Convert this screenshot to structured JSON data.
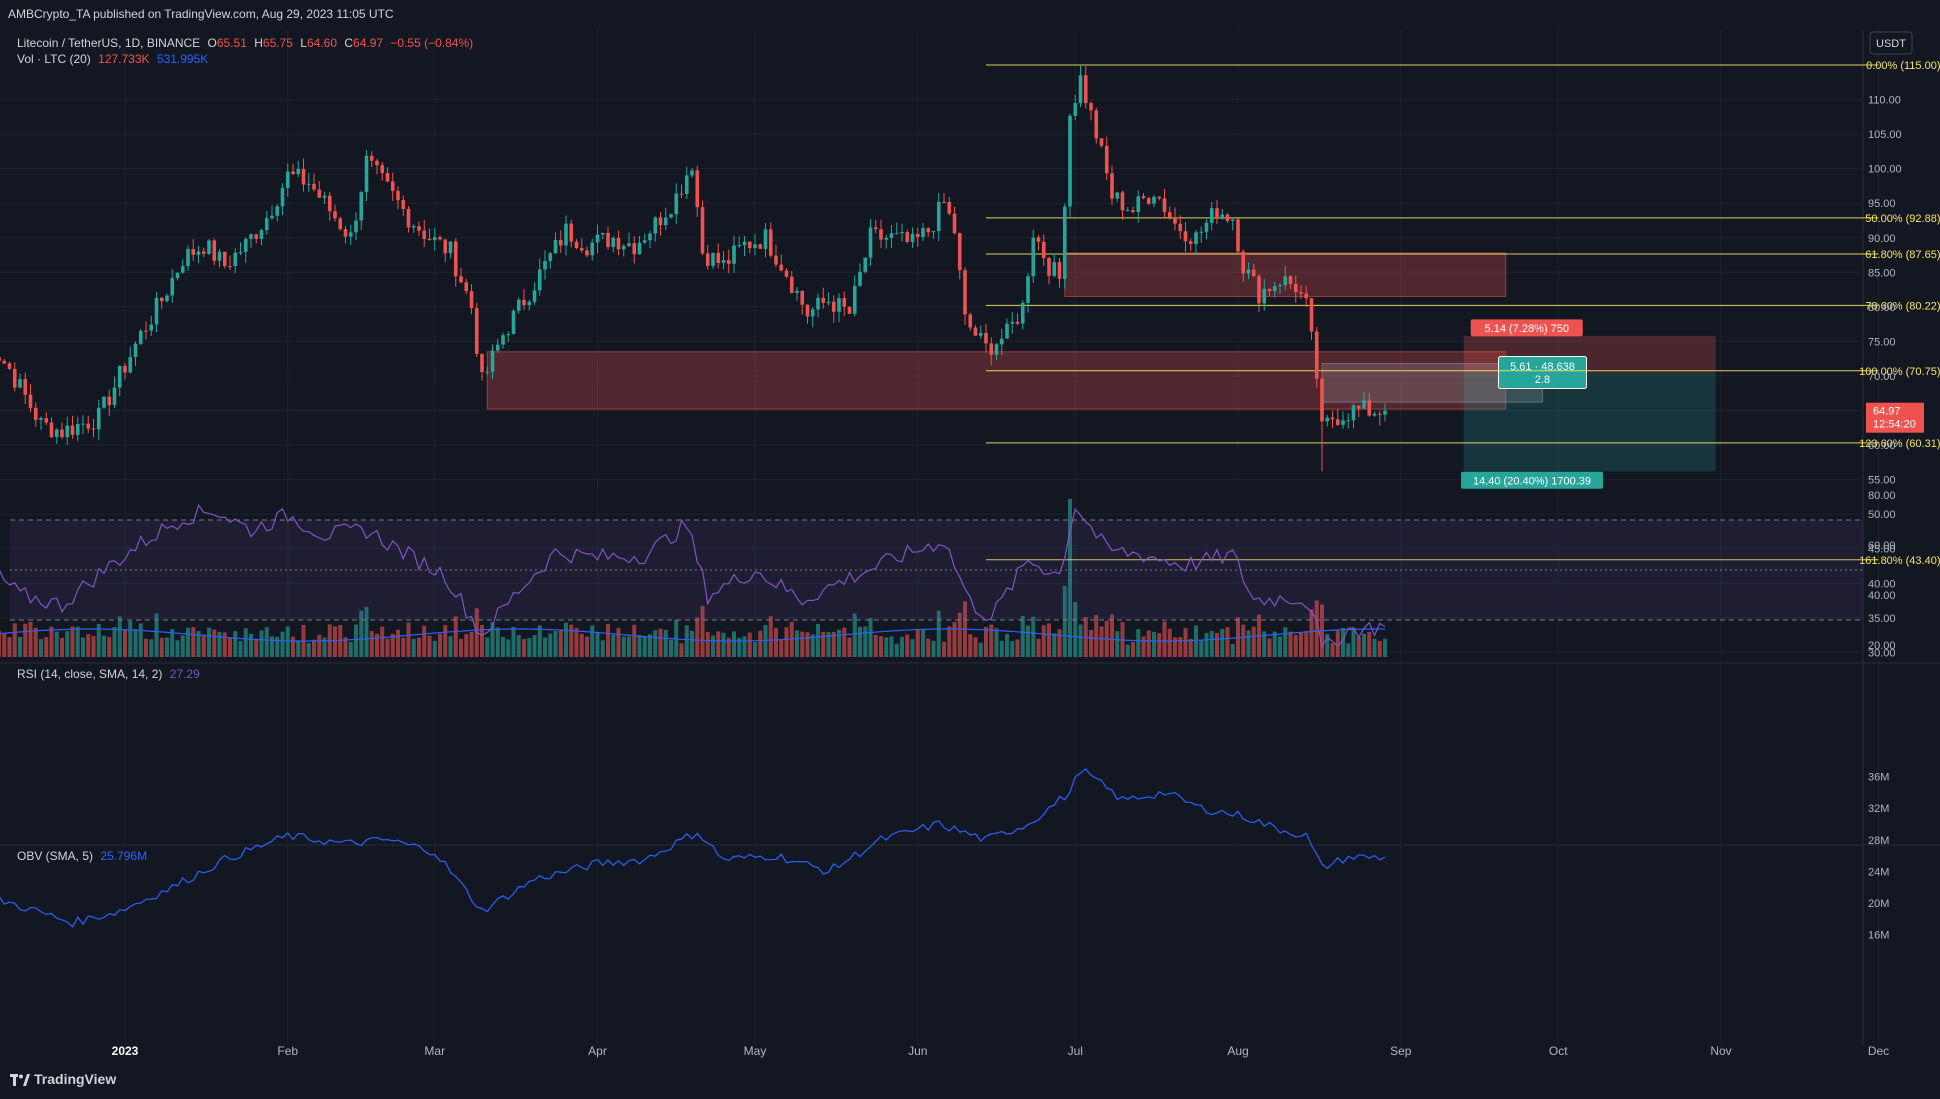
{
  "header": {
    "publish_line": "AMBCrypto_TA published on TradingView.com, Aug 29, 2023 11:05 UTC"
  },
  "legend": {
    "symbol": "Litecoin / TetherUS, 1D, BINANCE",
    "open_label": "O",
    "open": "65.51",
    "high_label": "H",
    "high": "65.75",
    "low_label": "L",
    "low": "64.60",
    "close_label": "C",
    "close": "64.97",
    "change": "−0.55 (−0.84%)",
    "vol_label": "Vol · LTC (20)",
    "vol_value": "127.733K",
    "vol_ma": "531.995K",
    "rsi_label": "RSI (14, close, SMA, 14, 2)",
    "rsi_value": "27.29",
    "obv_label": "OBV (SMA, 5)",
    "obv_value": "25.796M"
  },
  "footer": {
    "brand": "TradingView"
  },
  "chart_data": [
    {
      "type": "candlestick",
      "currency": "USDT",
      "x_ticks": [
        "2023",
        "Feb",
        "Mar",
        "Apr",
        "May",
        "Jun",
        "Jul",
        "Aug",
        "Sep",
        "Oct",
        "Nov",
        "Dec"
      ],
      "y_ticks": [
        30,
        35,
        40,
        45,
        50,
        55,
        60,
        65,
        70,
        75,
        80,
        85,
        90,
        95,
        100,
        105,
        110
      ],
      "price_path": [
        [
          "2022-12-05",
          76
        ],
        [
          "2022-12-10",
          71
        ],
        [
          "2022-12-16",
          63
        ],
        [
          "2022-12-20",
          62
        ],
        [
          "2022-12-27",
          64
        ],
        [
          "2022-12-31",
          70
        ],
        [
          "2023-01-04",
          76
        ],
        [
          "2023-01-08",
          81
        ],
        [
          "2023-01-12",
          87
        ],
        [
          "2023-01-16",
          89
        ],
        [
          "2023-01-20",
          86
        ],
        [
          "2023-01-24",
          89
        ],
        [
          "2023-01-28",
          93
        ],
        [
          "2023-02-01",
          99
        ],
        [
          "2023-02-05",
          98
        ],
        [
          "2023-02-09",
          94
        ],
        [
          "2023-02-13",
          90
        ],
        [
          "2023-02-16",
          101
        ],
        [
          "2023-02-20",
          97
        ],
        [
          "2023-02-24",
          93
        ],
        [
          "2023-02-28",
          90
        ],
        [
          "2023-03-04",
          88
        ],
        [
          "2023-03-08",
          80
        ],
        [
          "2023-03-10",
          69
        ],
        [
          "2023-03-14",
          76
        ],
        [
          "2023-03-18",
          81
        ],
        [
          "2023-03-22",
          86
        ],
        [
          "2023-03-26",
          91
        ],
        [
          "2023-03-30",
          89
        ],
        [
          "2023-04-04",
          90
        ],
        [
          "2023-04-08",
          89
        ],
        [
          "2023-04-12",
          92
        ],
        [
          "2023-04-16",
          96
        ],
        [
          "2023-04-19",
          101
        ],
        [
          "2023-04-21",
          88
        ],
        [
          "2023-04-25",
          86
        ],
        [
          "2023-04-29",
          89
        ],
        [
          "2023-05-03",
          90
        ],
        [
          "2023-05-07",
          85
        ],
        [
          "2023-05-11",
          79
        ],
        [
          "2023-05-15",
          81
        ],
        [
          "2023-05-19",
          79
        ],
        [
          "2023-05-23",
          90
        ],
        [
          "2023-05-27",
          90
        ],
        [
          "2023-05-31",
          89
        ],
        [
          "2023-06-03",
          91
        ],
        [
          "2023-06-06",
          95
        ],
        [
          "2023-06-08",
          91
        ],
        [
          "2023-06-10",
          78
        ],
        [
          "2023-06-14",
          74
        ],
        [
          "2023-06-18",
          76
        ],
        [
          "2023-06-21",
          80
        ],
        [
          "2023-06-23",
          91
        ],
        [
          "2023-06-26",
          86
        ],
        [
          "2023-06-28",
          84
        ],
        [
          "2023-06-30",
          108
        ],
        [
          "2023-07-02",
          113
        ],
        [
          "2023-07-05",
          105
        ],
        [
          "2023-07-08",
          96
        ],
        [
          "2023-07-12",
          94
        ],
        [
          "2023-07-16",
          97
        ],
        [
          "2023-07-20",
          92
        ],
        [
          "2023-07-24",
          90
        ],
        [
          "2023-07-28",
          94
        ],
        [
          "2023-07-31",
          93
        ],
        [
          "2023-08-02",
          86
        ],
        [
          "2023-08-05",
          82
        ],
        [
          "2023-08-09",
          84
        ],
        [
          "2023-08-12",
          83
        ],
        [
          "2023-08-14",
          80
        ],
        [
          "2023-08-16",
          70
        ],
        [
          "2023-08-17",
          62
        ],
        [
          "2023-08-19",
          64
        ],
        [
          "2023-08-23",
          65
        ],
        [
          "2023-08-29",
          64.97
        ]
      ],
      "fibonacci": [
        {
          "label": "0.00% (115.00)",
          "price": 115.0
        },
        {
          "label": "50.00% (92.88)",
          "price": 92.88
        },
        {
          "label": "61.80% (87.65)",
          "price": 87.65
        },
        {
          "label": "78.60% (80.22)",
          "price": 80.22
        },
        {
          "label": "100.00% (70.75)",
          "price": 70.75
        },
        {
          "label": "123.60% (60.31)",
          "price": 60.31
        },
        {
          "label": "161.80% (43.40)",
          "price": 43.4
        }
      ],
      "zones": [
        {
          "from": "2023-03-11",
          "to": "2023-09-21",
          "low": 65.2,
          "high": 73.5
        },
        {
          "from": "2023-06-29",
          "to": "2023-09-21",
          "low": 81.5,
          "high": 87.8
        }
      ],
      "position": {
        "stop_label": "5.14 (7.28%) 750",
        "center_label_1": "5.61 · 48.638",
        "center_label_2": "2.8",
        "target_label": "14.40 (20.40%) 1700.39",
        "entry": 70.5,
        "stop": 75.8,
        "target": 56.2
      },
      "last_price": "64.97",
      "countdown": "12:54:20",
      "accent_colors": {
        "up": "#26a69a",
        "down": "#ef5350",
        "fib": "#f5e663",
        "rsi": "#7e57c2",
        "obv": "#2962ff"
      }
    },
    {
      "type": "line",
      "name": "RSI",
      "y_ticks": [
        20,
        40,
        60,
        80
      ],
      "bands": [
        30,
        50,
        70
      ],
      "path": [
        [
          "2022-12-05",
          53
        ],
        [
          "2022-12-12",
          40
        ],
        [
          "2022-12-20",
          36
        ],
        [
          "2022-12-28",
          50
        ],
        [
          "2023-01-05",
          62
        ],
        [
          "2023-01-12",
          71
        ],
        [
          "2023-01-18",
          74
        ],
        [
          "2023-01-25",
          66
        ],
        [
          "2023-02-01",
          72
        ],
        [
          "2023-02-08",
          64
        ],
        [
          "2023-02-16",
          66
        ],
        [
          "2023-02-24",
          56
        ],
        [
          "2023-03-03",
          48
        ],
        [
          "2023-03-10",
          24
        ],
        [
          "2023-03-17",
          42
        ],
        [
          "2023-03-24",
          57
        ],
        [
          "2023-04-01",
          55
        ],
        [
          "2023-04-10",
          56
        ],
        [
          "2023-04-18",
          68
        ],
        [
          "2023-04-22",
          40
        ],
        [
          "2023-05-01",
          50
        ],
        [
          "2023-05-10",
          38
        ],
        [
          "2023-05-18",
          46
        ],
        [
          "2023-05-27",
          54
        ],
        [
          "2023-06-06",
          62
        ],
        [
          "2023-06-11",
          37
        ],
        [
          "2023-06-15",
          31
        ],
        [
          "2023-06-22",
          54
        ],
        [
          "2023-06-28",
          48
        ],
        [
          "2023-07-01",
          76
        ],
        [
          "2023-07-07",
          58
        ],
        [
          "2023-07-14",
          56
        ],
        [
          "2023-07-22",
          52
        ],
        [
          "2023-07-31",
          56
        ],
        [
          "2023-08-04",
          38
        ],
        [
          "2023-08-12",
          39
        ],
        [
          "2023-08-15",
          36
        ],
        [
          "2023-08-17",
          18
        ],
        [
          "2023-08-22",
          26
        ],
        [
          "2023-08-29",
          27.29
        ]
      ]
    },
    {
      "type": "line",
      "name": "OBV",
      "y_ticks": [
        "16M",
        "20M",
        "24M",
        "28M",
        "32M",
        "36M"
      ],
      "y_values": [
        16,
        20,
        24,
        28,
        32,
        36
      ],
      "path": [
        [
          "2022-12-05",
          21
        ],
        [
          "2022-12-15",
          19
        ],
        [
          "2022-12-22",
          17.5
        ],
        [
          "2022-12-31",
          19
        ],
        [
          "2023-01-10",
          22
        ],
        [
          "2023-01-20",
          25.5
        ],
        [
          "2023-02-01",
          28.5
        ],
        [
          "2023-02-12",
          27.5
        ],
        [
          "2023-02-20",
          28
        ],
        [
          "2023-03-01",
          26.5
        ],
        [
          "2023-03-10",
          19
        ],
        [
          "2023-03-20",
          23
        ],
        [
          "2023-04-01",
          25
        ],
        [
          "2023-04-10",
          25.5
        ],
        [
          "2023-04-20",
          29
        ],
        [
          "2023-04-25",
          25.5
        ],
        [
          "2023-05-05",
          26
        ],
        [
          "2023-05-15",
          24
        ],
        [
          "2023-05-25",
          28
        ],
        [
          "2023-06-05",
          30
        ],
        [
          "2023-06-14",
          28
        ],
        [
          "2023-06-22",
          30
        ],
        [
          "2023-06-30",
          34
        ],
        [
          "2023-07-02",
          37
        ],
        [
          "2023-07-10",
          33
        ],
        [
          "2023-07-18",
          34
        ],
        [
          "2023-07-25",
          32
        ],
        [
          "2023-08-02",
          31
        ],
        [
          "2023-08-08",
          29.5
        ],
        [
          "2023-08-14",
          28.5
        ],
        [
          "2023-08-17",
          24.5
        ],
        [
          "2023-08-22",
          25.8
        ],
        [
          "2023-08-29",
          25.796
        ]
      ]
    }
  ]
}
